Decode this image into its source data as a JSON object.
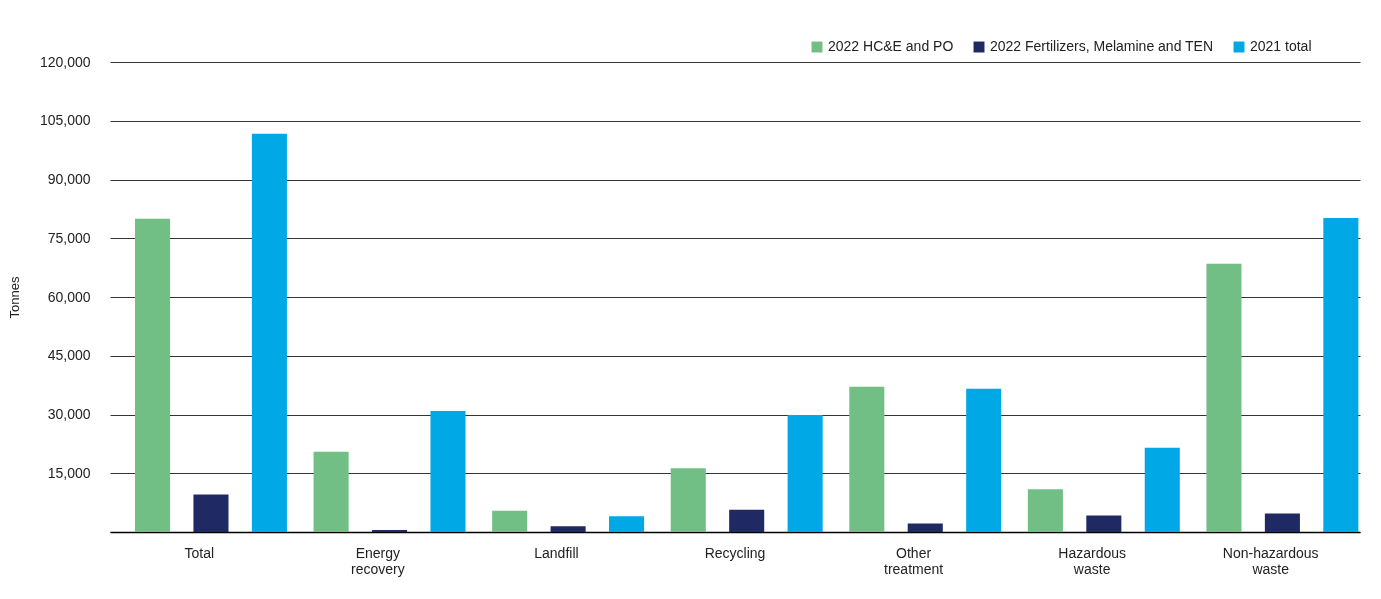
{
  "chart_data": {
    "type": "bar",
    "ylabel": "Tonnes",
    "categories": [
      "Total",
      "Energy recovery",
      "Landfill",
      "Recycling",
      "Other treatment",
      "Hazardous waste",
      "Non-hazardous waste"
    ],
    "series": [
      {
        "name": "2022 HC&E and PO",
        "color": "#72bf85",
        "values": [
          80000,
          20500,
          5400,
          16300,
          37100,
          10900,
          68500
        ]
      },
      {
        "name": "2022 Fertilizers, Melamine and TEN",
        "color": "#1f2a64",
        "values": [
          9600,
          500,
          1500,
          5700,
          2200,
          4200,
          4700
        ]
      },
      {
        "name": "2021 total",
        "color": "#00a9e6",
        "values": [
          101700,
          30900,
          4000,
          29900,
          36600,
          21500,
          80200
        ]
      }
    ],
    "ylim": [
      0,
      120000
    ],
    "yticks": [
      {
        "value": 0,
        "label": null
      },
      {
        "value": 15000,
        "label": "15,000"
      },
      {
        "value": 30000,
        "label": "30,000"
      },
      {
        "value": 45000,
        "label": "45,000"
      },
      {
        "value": 60000,
        "label": "60,000"
      },
      {
        "value": 75000,
        "label": "75,000"
      },
      {
        "value": 90000,
        "label": "90,000"
      },
      {
        "value": 105000,
        "label": "105,000"
      },
      {
        "value": 120000,
        "label": "120,000"
      }
    ],
    "grid": "y",
    "legend": "top right"
  }
}
